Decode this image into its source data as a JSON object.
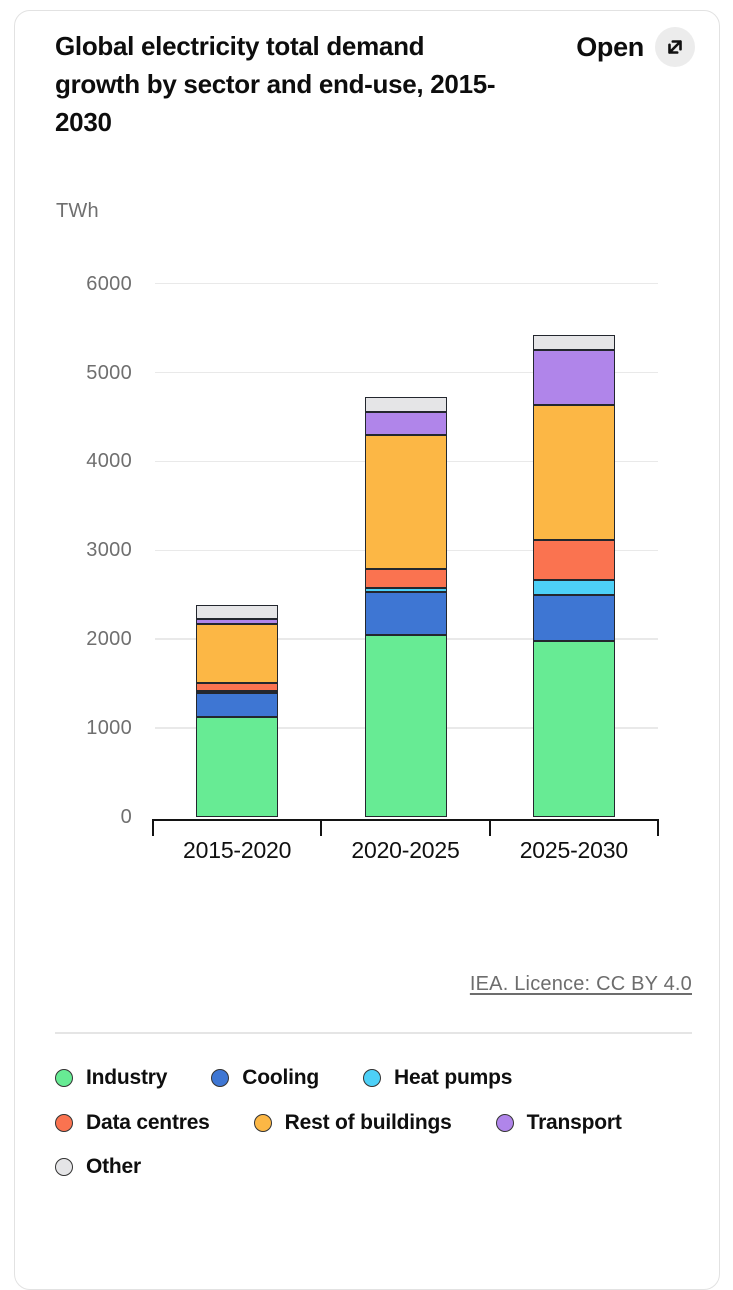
{
  "header": {
    "open_button": "Open"
  },
  "chart_data": {
    "type": "bar",
    "stacked": true,
    "title": "Global electricity total demand growth by sector and end-use, 2015-2030",
    "unit_label": "TWh",
    "xlabel": "",
    "ylabel": "TWh",
    "categories": [
      "2015-2020",
      "2020-2025",
      "2025-2030"
    ],
    "series": [
      {
        "name": "Industry",
        "color": "#67EB94",
        "values": [
          1130,
          2050,
          1975
        ]
      },
      {
        "name": "Cooling",
        "color": "#3E76D3",
        "values": [
          270,
          480,
          525
        ]
      },
      {
        "name": "Heat pumps",
        "color": "#4DD0F7",
        "values": [
          20,
          50,
          165
        ]
      },
      {
        "name": "Data centres",
        "color": "#FA7350",
        "values": [
          85,
          205,
          455
        ]
      },
      {
        "name": "Rest of buildings",
        "color": "#FCB745",
        "values": [
          670,
          1515,
          1510
        ]
      },
      {
        "name": "Transport",
        "color": "#B085EA",
        "values": [
          55,
          260,
          625
        ]
      },
      {
        "name": "Other",
        "color": "#E5E5E7",
        "values": [
          155,
          160,
          170
        ]
      }
    ],
    "totals": [
      2385,
      4720,
      5425
    ],
    "ylim": [
      0,
      6000
    ],
    "yticks": [
      0,
      1000,
      2000,
      3000,
      4000,
      5000,
      6000
    ],
    "grid": "horizontal",
    "legend_position": "bottom",
    "legend_rows": [
      3,
      3,
      1
    ],
    "outline_color": "#23272E",
    "background_color": "#FFFFFF"
  },
  "footer": {
    "licence_link": "IEA. Licence: CC BY 4.0"
  }
}
